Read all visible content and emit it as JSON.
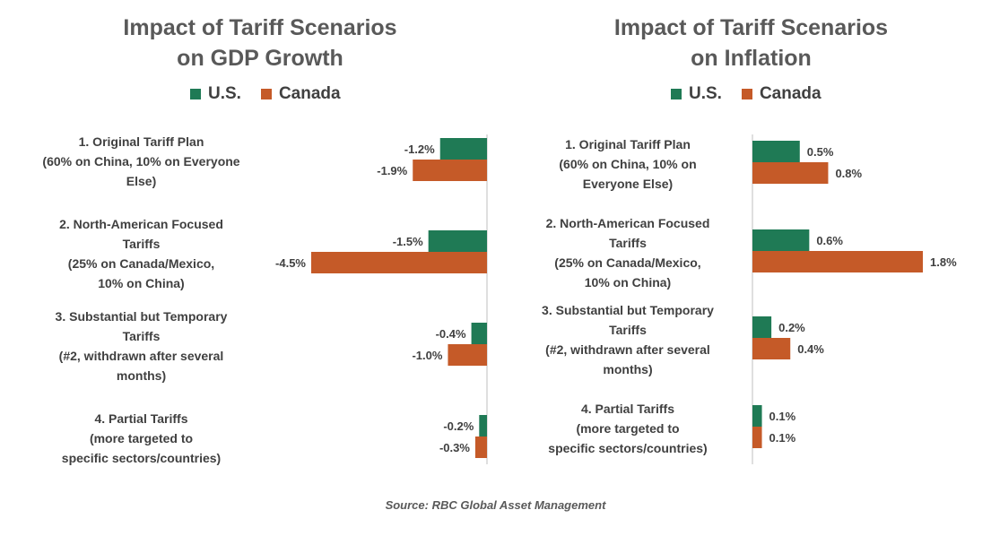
{
  "legend": {
    "us_label": "U.S.",
    "canada_label": "Canada"
  },
  "colors": {
    "us": "#1f7a55",
    "canada": "#c55a28",
    "axis": "#bfbfbf",
    "text": "#404040"
  },
  "chart_data": [
    {
      "type": "bar",
      "orientation": "horizontal",
      "title": "Impact of Tariff Scenarios on GDP Growth",
      "title_lines": [
        "Impact of Tariff Scenarios",
        "on GDP Growth"
      ],
      "categories": [
        [
          "1. Original Tariff Plan",
          "(60% on China, 10% on Everyone",
          "Else)"
        ],
        [
          "2. North-American Focused",
          "Tariffs",
          "(25% on Canada/Mexico,",
          "10% on China)"
        ],
        [
          "3. Substantial but Temporary",
          "Tariffs",
          "(#2, withdrawn after several",
          "months)"
        ],
        [
          "4. Partial Tariffs",
          "(more targeted to",
          "specific sectors/countries)"
        ]
      ],
      "series": [
        {
          "name": "U.S.",
          "values": [
            -1.2,
            -1.5,
            -0.4,
            -0.2
          ],
          "labels": [
            "-1.2%",
            "-1.5%",
            "-0.4%",
            "-0.2%"
          ]
        },
        {
          "name": "Canada",
          "values": [
            -1.9,
            -4.5,
            -1.0,
            -0.3
          ],
          "labels": [
            "-1.9%",
            "-4.5%",
            "-1.0%",
            "-0.3%"
          ]
        }
      ],
      "xlim": [
        -4.5,
        0
      ],
      "legend_position": "top",
      "grid": false
    },
    {
      "type": "bar",
      "orientation": "horizontal",
      "title": "Impact of Tariff Scenarios on Inflation",
      "title_lines": [
        "Impact of Tariff Scenarios",
        "on Inflation"
      ],
      "categories": [
        [
          "1. Original Tariff Plan",
          "(60% on China, 10% on",
          "Everyone Else)"
        ],
        [
          "2. North-American Focused",
          "Tariffs",
          "(25% on Canada/Mexico,",
          "10% on China)"
        ],
        [
          "3. Substantial but Temporary",
          "Tariffs",
          "(#2, withdrawn after several",
          "months)"
        ],
        [
          "4. Partial Tariffs",
          "(more targeted to",
          "specific sectors/countries)"
        ]
      ],
      "series": [
        {
          "name": "U.S.",
          "values": [
            0.5,
            0.6,
            0.2,
            0.1
          ],
          "labels": [
            "0.5%",
            "0.6%",
            "0.2%",
            "0.1%"
          ]
        },
        {
          "name": "Canada",
          "values": [
            0.8,
            1.8,
            0.4,
            0.1
          ],
          "labels": [
            "0.8%",
            "1.8%",
            "0.4%",
            "0.1%"
          ]
        }
      ],
      "xlim": [
        0,
        1.8
      ],
      "legend_position": "top",
      "grid": false
    }
  ],
  "source": "Source: RBC Global Asset Management"
}
